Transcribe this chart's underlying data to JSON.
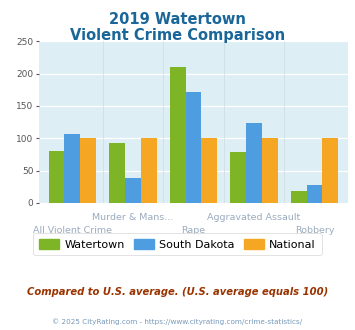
{
  "title_line1": "2019 Watertown",
  "title_line2": "Violent Crime Comparison",
  "bottom_labels": [
    "All Violent Crime",
    "",
    "Rape",
    "",
    "Robbery"
  ],
  "top_labels": [
    "",
    "Murder & Mans...",
    "",
    "Aggravated Assault",
    ""
  ],
  "watertown": [
    80,
    92,
    210,
    79,
    18
  ],
  "south_dakota": [
    106,
    38,
    171,
    123,
    28
  ],
  "national": [
    100,
    100,
    100,
    100,
    100
  ],
  "color_watertown": "#7db526",
  "color_south_dakota": "#4d9de0",
  "color_national": "#f5a623",
  "ylim": [
    0,
    250
  ],
  "yticks": [
    0,
    50,
    100,
    150,
    200,
    250
  ],
  "background_color": "#ddeef5",
  "title_color": "#1a6699",
  "xlabel_color": "#9aabbf",
  "footer_text": "Compared to U.S. average. (U.S. average equals 100)",
  "footer_color": "#993300",
  "copyright_text": "© 2025 CityRating.com - https://www.cityrating.com/crime-statistics/",
  "copyright_color": "#7799bb",
  "legend_labels": [
    "Watertown",
    "South Dakota",
    "National"
  ]
}
